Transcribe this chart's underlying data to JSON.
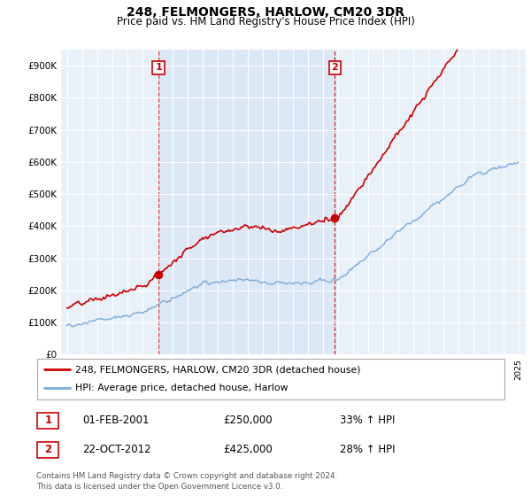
{
  "title": "248, FELMONGERS, HARLOW, CM20 3DR",
  "subtitle": "Price paid vs. HM Land Registry's House Price Index (HPI)",
  "ylim": [
    0,
    950000
  ],
  "yticks": [
    0,
    100000,
    200000,
    300000,
    400000,
    500000,
    600000,
    700000,
    800000,
    900000
  ],
  "ytick_labels": [
    "£0",
    "£100K",
    "£200K",
    "£300K",
    "£400K",
    "£500K",
    "£600K",
    "£700K",
    "£800K",
    "£900K"
  ],
  "sale1_year": 2001.08,
  "sale1_price": 250000,
  "sale2_year": 2012.81,
  "sale2_price": 425000,
  "red_color": "#cc0000",
  "blue_color": "#7aaadd",
  "shade_color": "#dce8f5",
  "bg_color": "#e8f0f8",
  "legend_label_red": "248, FELMONGERS, HARLOW, CM20 3DR (detached house)",
  "legend_label_blue": "HPI: Average price, detached house, Harlow",
  "table_row1": [
    "1",
    "01-FEB-2001",
    "£250,000",
    "33% ↑ HPI"
  ],
  "table_row2": [
    "2",
    "22-OCT-2012",
    "£425,000",
    "28% ↑ HPI"
  ],
  "footnote": "Contains HM Land Registry data © Crown copyright and database right 2024.\nThis data is licensed under the Open Government Licence v3.0.",
  "xstart": 1995,
  "xend": 2025,
  "n_months": 361
}
